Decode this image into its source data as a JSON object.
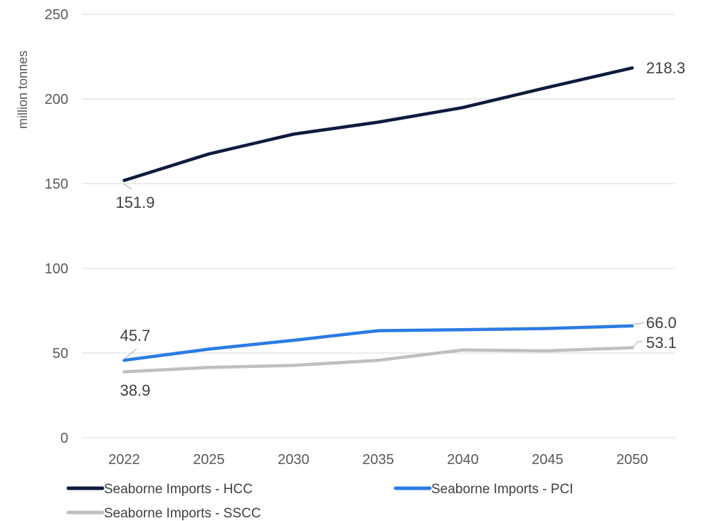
{
  "chart_data": {
    "type": "line",
    "title": "",
    "xlabel": "",
    "ylabel": "million tonnes",
    "categories": [
      "2022",
      "2025",
      "2030",
      "2035",
      "2040",
      "2045",
      "2050"
    ],
    "ylim": [
      0,
      250
    ],
    "yticks": [
      0,
      50,
      100,
      150,
      200,
      250
    ],
    "grid": true,
    "legend_position": "bottom",
    "series": [
      {
        "name": "Seaborne Imports -  HCC",
        "color": "#0d1b3e",
        "values": [
          151.9,
          167.5,
          179.2,
          186.3,
          194.9,
          206.8,
          218.3
        ],
        "labels": {
          "first": "151.9",
          "last": "218.3"
        }
      },
      {
        "name": "Seaborne Imports -  PCI",
        "color": "#2b7be5",
        "values": [
          45.7,
          52.3,
          57.5,
          63.2,
          63.8,
          64.5,
          66.0
        ],
        "labels": {
          "first": "45.7",
          "last": "66.0"
        }
      },
      {
        "name": "Seaborne Imports -  SSCC",
        "color": "#bfbfbf",
        "values": [
          38.9,
          41.5,
          42.7,
          45.7,
          51.8,
          51.3,
          53.1
        ],
        "labels": {
          "first": "38.9",
          "last": "53.1"
        }
      }
    ]
  }
}
